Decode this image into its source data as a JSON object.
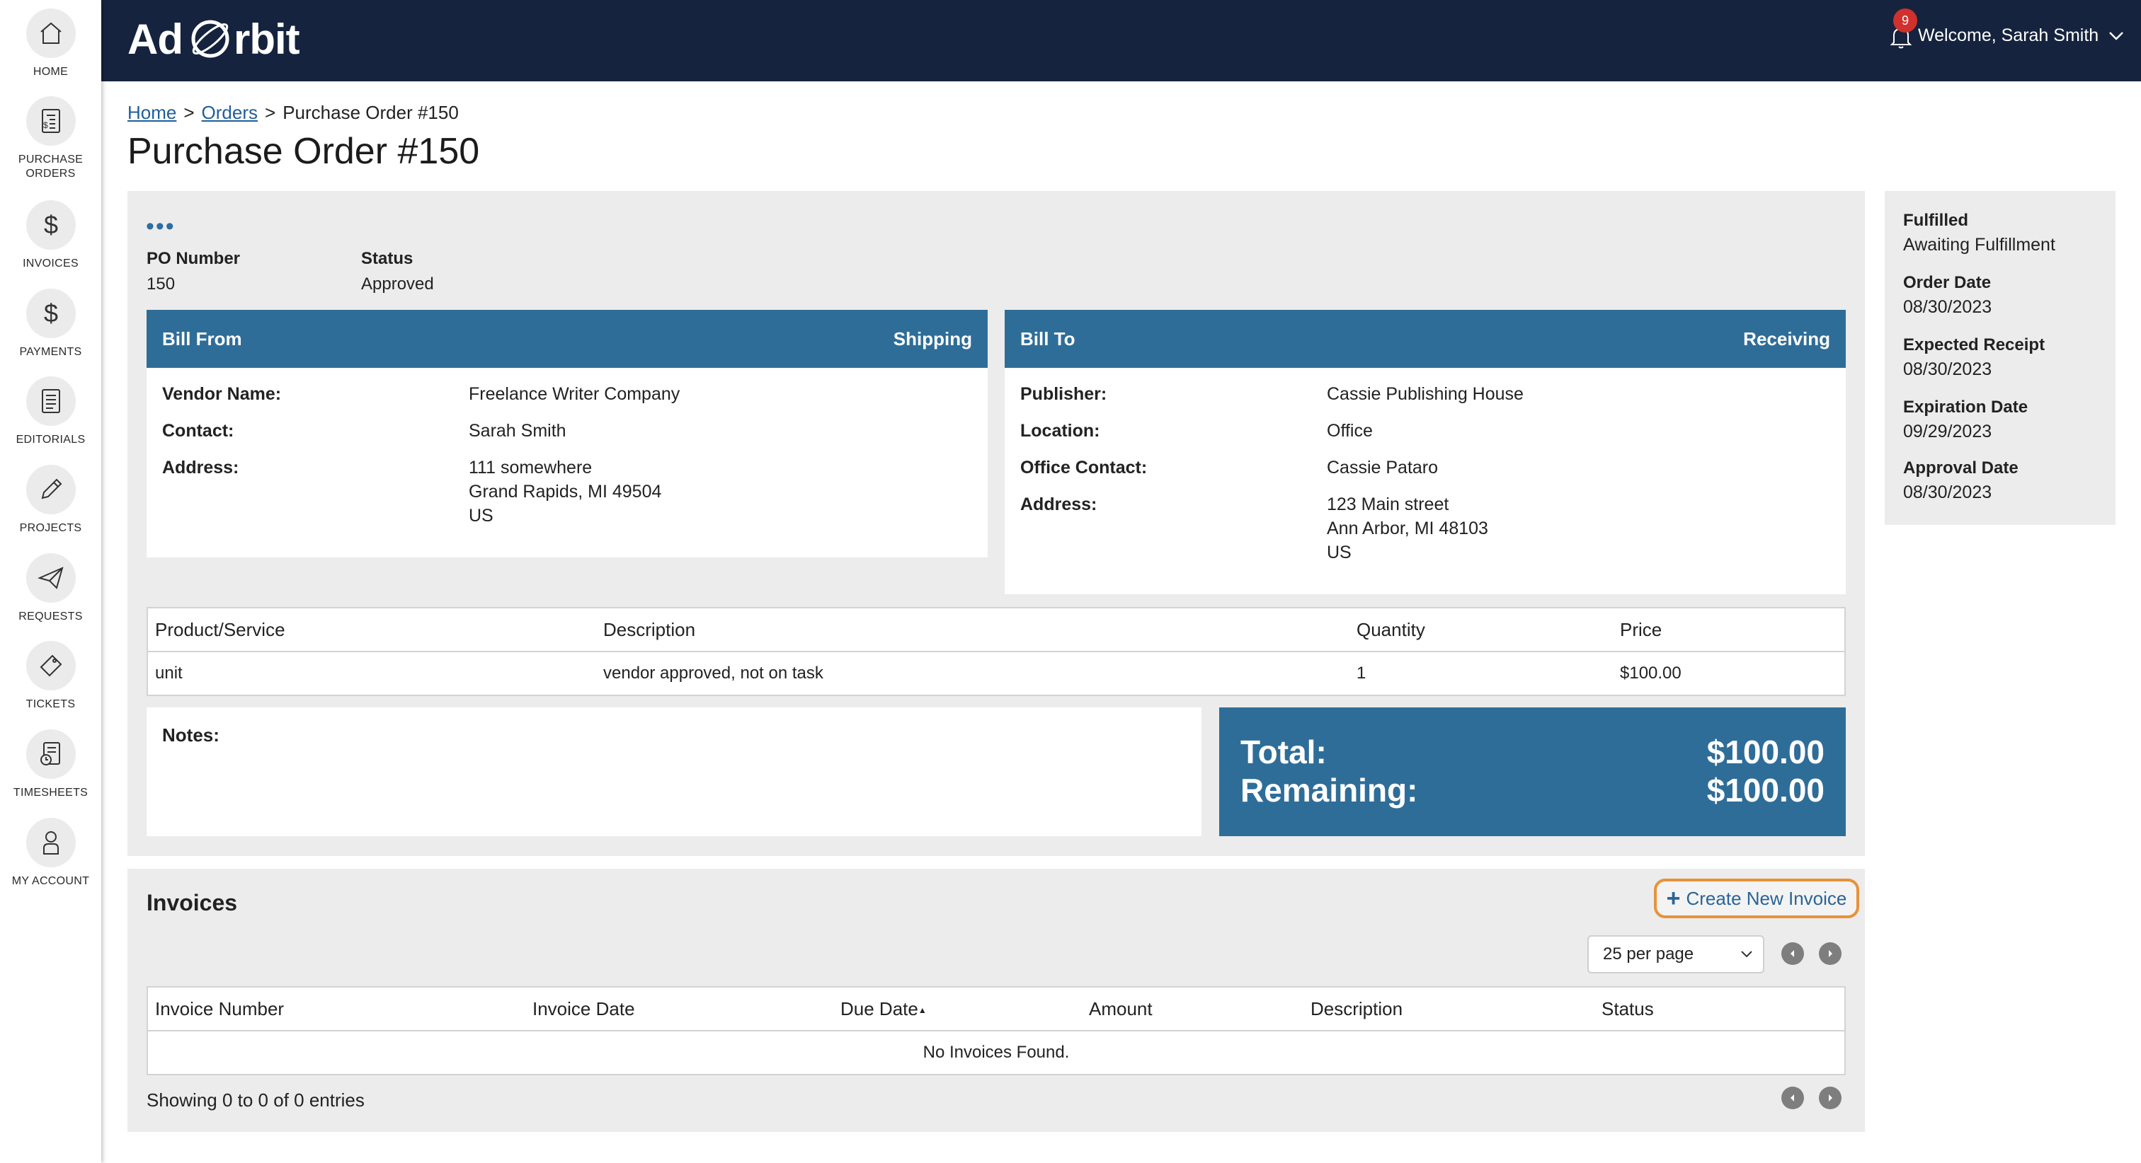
{
  "app": {
    "logo_text_a": "Ad",
    "logo_text_b": "rbit"
  },
  "sidebar": {
    "items": [
      {
        "label": "HOME",
        "icon": "home-icon"
      },
      {
        "label": "PURCHASE ORDERS",
        "icon": "purchase-orders-icon"
      },
      {
        "label": "INVOICES",
        "icon": "dollar-icon"
      },
      {
        "label": "PAYMENTS",
        "icon": "dollar-icon"
      },
      {
        "label": "EDITORIALS",
        "icon": "document-icon"
      },
      {
        "label": "PROJECTS",
        "icon": "pencil-icon"
      },
      {
        "label": "REQUESTS",
        "icon": "paper-plane-icon"
      },
      {
        "label": "TICKETS",
        "icon": "ticket-icon"
      },
      {
        "label": "TIMESHEETS",
        "icon": "timesheet-icon"
      },
      {
        "label": "MY ACCOUNT",
        "icon": "person-icon"
      }
    ]
  },
  "header": {
    "notification_count": "9",
    "welcome": "Welcome, Sarah Smith"
  },
  "breadcrumb": {
    "home": "Home",
    "sep1": ">",
    "orders": "Orders",
    "sep2": ">",
    "current": "Purchase Order #150"
  },
  "page": {
    "title": "Purchase Order #150",
    "menu_dots": "•••"
  },
  "po": {
    "number_label": "PO Number",
    "number": "150",
    "status_label": "Status",
    "status": "Approved"
  },
  "bill_from": {
    "title": "Bill From",
    "right": "Shipping",
    "vendor_label": "Vendor Name:",
    "vendor": "Freelance Writer Company",
    "contact_label": "Contact:",
    "contact": "Sarah Smith",
    "address_label": "Address:",
    "address1": "111 somewhere",
    "address2": "Grand Rapids, MI 49504",
    "address3": "US"
  },
  "bill_to": {
    "title": "Bill To",
    "right": "Receiving",
    "publisher_label": "Publisher:",
    "publisher": "Cassie Publishing House",
    "location_label": "Location:",
    "location": "Office",
    "office_contact_label": "Office Contact:",
    "office_contact": "Cassie Pataro",
    "address_label": "Address:",
    "address1": "123 Main street",
    "address2": "Ann Arbor, MI 48103",
    "address3": "US"
  },
  "items": {
    "headers": [
      "Product/Service",
      "Description",
      "Quantity",
      "Price"
    ],
    "rows": [
      [
        "unit",
        "vendor approved, not on task",
        "1",
        "$100.00"
      ]
    ]
  },
  "notes": {
    "label": "Notes:"
  },
  "totals": {
    "total_label": "Total:",
    "total": "$100.00",
    "remaining_label": "Remaining:",
    "remaining": "$100.00"
  },
  "status_panel": {
    "fulfilled_label": "Fulfilled",
    "fulfilled": "Awaiting Fulfillment",
    "order_date_label": "Order Date",
    "order_date": "08/30/2023",
    "expected_label": "Expected Receipt",
    "expected": "08/30/2023",
    "expiration_label": "Expiration Date",
    "expiration": "09/29/2023",
    "approval_label": "Approval Date",
    "approval": "08/30/2023"
  },
  "invoices": {
    "title": "Invoices",
    "create_label": "Create New Invoice",
    "per_page": "25 per page",
    "headers": [
      "Invoice Number",
      "Invoice Date",
      "Due Date",
      "Amount",
      "Description",
      "Status"
    ],
    "empty": "No Invoices Found.",
    "showing": "Showing 0 to 0 of 0 entries"
  },
  "colors": {
    "header_bg": "#15233e",
    "accent_blue": "#2f6d99",
    "link": "#1f5f99",
    "highlight": "#e8923a",
    "badge": "#d0312d"
  }
}
